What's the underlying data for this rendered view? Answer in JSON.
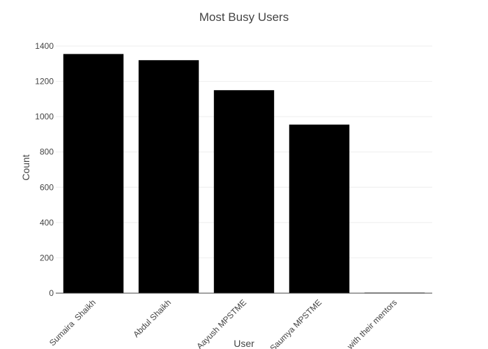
{
  "chart_data": {
    "type": "bar",
    "title": "Most Busy Users",
    "xlabel": "User",
    "ylabel": "Count",
    "categories": [
      "Sumaira  Shaikh",
      "Abdul Shaikh",
      "Aayush MPSTME",
      "Saumya MPSTME",
      "with their mentors"
    ],
    "values": [
      1355,
      1320,
      1150,
      955,
      3
    ],
    "ylim": [
      0,
      1400
    ],
    "yticks": [
      0,
      200,
      400,
      600,
      800,
      1000,
      1200,
      1400
    ],
    "grid": true,
    "bar_color": "#000000",
    "grid_color": "#eeeeee"
  }
}
